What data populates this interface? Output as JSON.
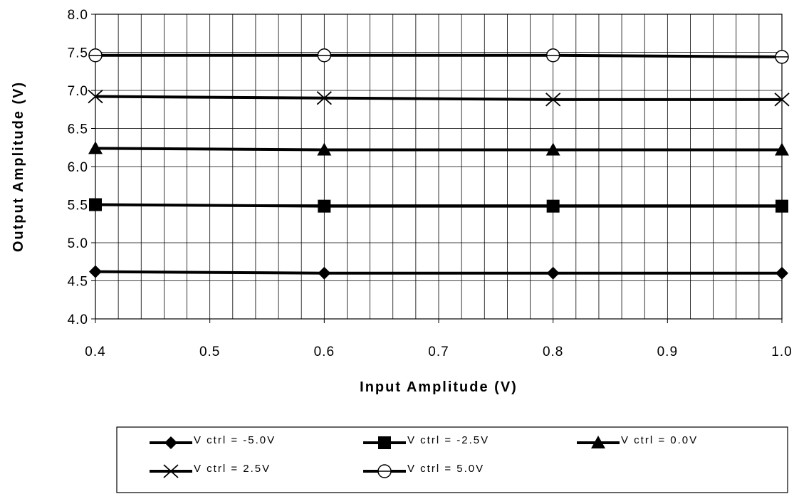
{
  "chart_data": {
    "type": "line",
    "title": "",
    "xlabel": "Input Amplitude (V)",
    "ylabel": "Output Amplitude (V)",
    "xlim": [
      0.4,
      1.0
    ],
    "ylim": [
      4.0,
      8.0
    ],
    "x_ticks": [
      "0.4",
      "0.5",
      "0.6",
      "0.7",
      "0.8",
      "0.9",
      "1.0"
    ],
    "y_ticks": [
      "4.0",
      "4.5",
      "5.0",
      "5.5",
      "6.0",
      "6.5",
      "7.0",
      "7.5",
      "8.0"
    ],
    "x_minor_step": 0.02,
    "y_major_step": 0.5,
    "grid": true,
    "legend_position": "bottom",
    "x": [
      0.4,
      0.6,
      0.8,
      1.0
    ],
    "series": [
      {
        "name": "Vctrl = -5.0V",
        "label": "V ctrl  =  -5.0V",
        "marker": "diamond",
        "values": [
          4.62,
          4.6,
          4.6,
          4.6
        ]
      },
      {
        "name": "Vctrl = -2.5V",
        "label": "V ctrl  =  -2.5V",
        "marker": "square",
        "values": [
          5.5,
          5.48,
          5.48,
          5.48
        ]
      },
      {
        "name": "Vctrl = 0.0V",
        "label": "V ctrl  =  0.0V",
        "marker": "triangle",
        "values": [
          6.24,
          6.22,
          6.22,
          6.22
        ]
      },
      {
        "name": "Vctrl = 2.5V",
        "label": "V ctrl  =  2.5V",
        "marker": "x",
        "values": [
          6.92,
          6.9,
          6.88,
          6.88
        ]
      },
      {
        "name": "Vctrl = 5.0V",
        "label": "V ctrl  =  5.0V",
        "marker": "circle",
        "values": [
          7.46,
          7.46,
          7.46,
          7.44
        ]
      }
    ],
    "colors": {
      "line": "#000000",
      "grid": "#000000",
      "background": "#ffffff"
    }
  }
}
